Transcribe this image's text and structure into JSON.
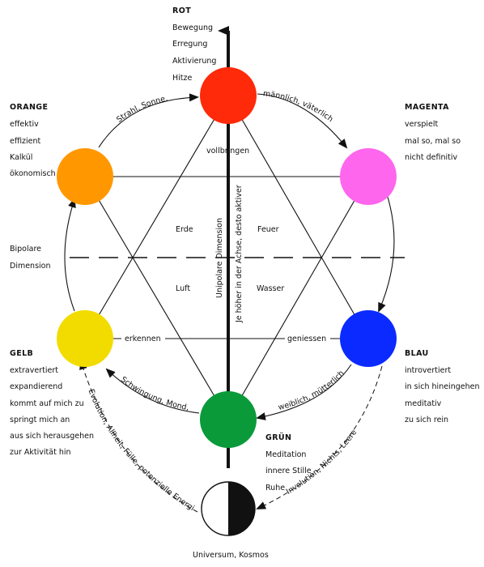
{
  "colors": {
    "rot": "#ff2a0a",
    "orange": "#ff9800",
    "magenta": "#ff66ee",
    "gelb": "#f2dc00",
    "blau": "#0a2aff",
    "gruen": "#0a9a3a",
    "line": "#111111"
  },
  "nodes": {
    "rot": {
      "name": "ROT",
      "lines": [
        "Bewegung",
        "Erregung",
        "Aktivierung",
        "Hitze"
      ],
      "sub": "vollbringen"
    },
    "orange": {
      "name": "ORANGE",
      "lines": [
        "effektiv",
        "effizient",
        "Kalkül",
        "ökonomisch"
      ]
    },
    "magenta": {
      "name": "MAGENTA",
      "lines": [
        "verspielt",
        "mal so, mal so",
        "nicht definitiv"
      ]
    },
    "gelb": {
      "name": "GELB",
      "lines": [
        "extravertiert",
        "expandierend",
        "kommt auf mich zu",
        "springt mich an",
        "aus sich herausgehen",
        "zur Aktivität hin"
      ]
    },
    "blau": {
      "name": "BLAU",
      "lines": [
        "introvertiert",
        "in sich hineingehen",
        "meditativ",
        "zu sich rein"
      ]
    },
    "gruen": {
      "name": "GRÜN",
      "lines": [
        "Meditation",
        "innere Stille",
        "Ruhe"
      ]
    }
  },
  "arc_labels": {
    "orange_rot": "Strahl, Sonne,",
    "rot_magenta": "männlich, väterlich",
    "gruen_gelb": "Schwingung, Mond,",
    "blau_gruen": "weiblich, mütterlich",
    "gelb_gruen_dashed": "Evolution, Allheit, Fülle, potenzielle Energie",
    "blau_kosmos_dashed": "Involution, Nichts, Leere"
  },
  "axis_labels": {
    "gelb_blau_left": "erkennen",
    "gelb_blau_right": "geniessen",
    "unipolar": "Unipolare Dimension",
    "unipolar_sub": "Je höher in der Achse, desto aktiver",
    "bipolar": "Bipolare",
    "bipolar_sub": "Dimension"
  },
  "elements": {
    "erde": "Erde",
    "feuer": "Feuer",
    "luft": "Luft",
    "wasser": "Wasser"
  },
  "bottom": {
    "caption": "Universum, Kosmos"
  }
}
